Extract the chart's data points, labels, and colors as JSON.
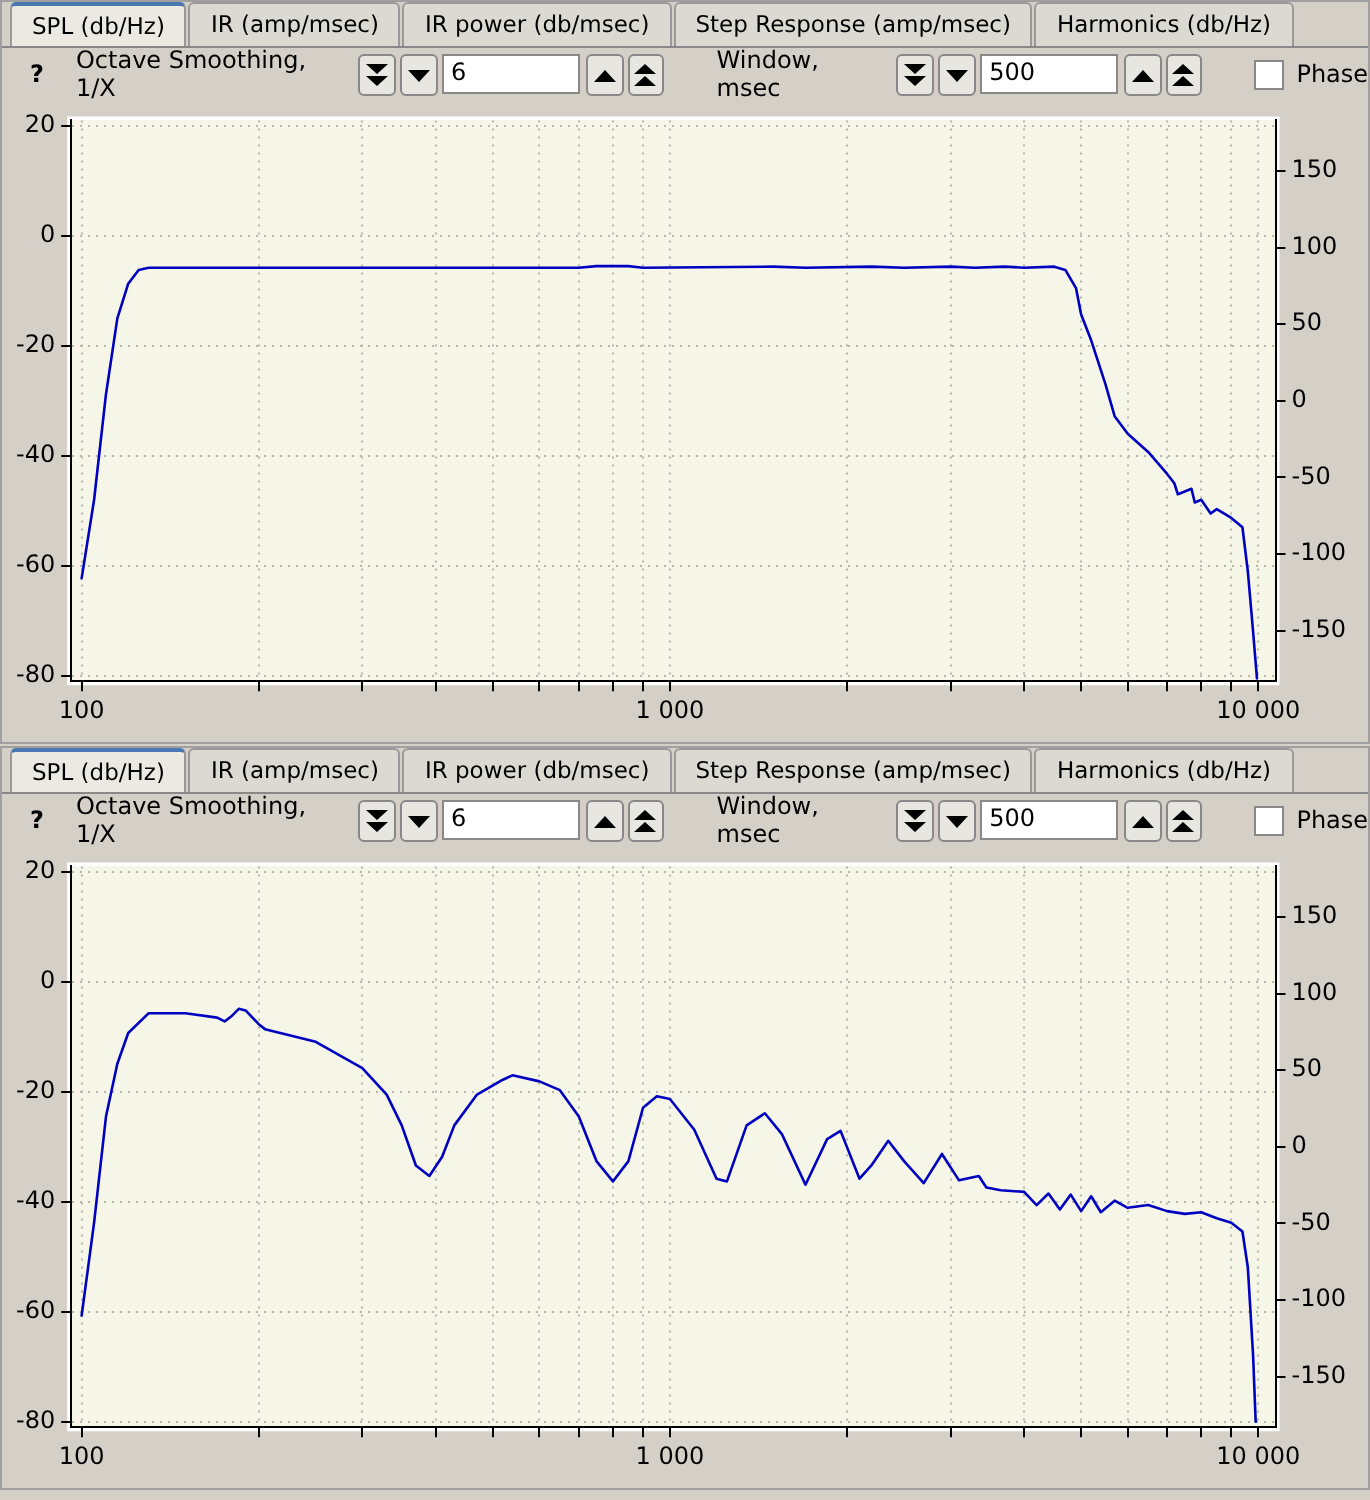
{
  "chart_data": [
    {
      "type": "line",
      "log": "x",
      "grid": true,
      "marker": "none",
      "line_style": "solid",
      "annotations": [
        "SPL (db/Hz)",
        "IR (amp/msec)",
        "IR power (db/msec)",
        "Step Response (amp/msec)",
        "Harmonics (db/Hz)",
        "?",
        "Octave Smoothing, 1/X",
        "6",
        "Window, msec",
        "500",
        "Phase"
      ],
      "xlim": [
        96,
        10700
      ],
      "ylim": [
        -81,
        21
      ],
      "y2lim": [
        -183,
        183
      ],
      "xticks": [
        100,
        {
          "value": 200,
          "label": null
        },
        {
          "value": 300,
          "label": null
        },
        {
          "value": 400,
          "label": null
        },
        {
          "value": 500,
          "label": null
        },
        {
          "value": 600,
          "label": null
        },
        {
          "value": 700,
          "label": null
        },
        {
          "value": 800,
          "label": null
        },
        {
          "value": 900,
          "label": null
        },
        {
          "value": 1000,
          "label": "1 000"
        },
        {
          "value": 2000,
          "label": null
        },
        {
          "value": 3000,
          "label": null
        },
        {
          "value": 4000,
          "label": null
        },
        {
          "value": 5000,
          "label": null
        },
        {
          "value": 6000,
          "label": null
        },
        {
          "value": 7000,
          "label": null
        },
        {
          "value": 8000,
          "label": null
        },
        {
          "value": 9000,
          "label": null
        },
        {
          "value": 10000,
          "label": "10 000"
        }
      ],
      "yticks": [
        -80,
        -60,
        -40,
        -20,
        0,
        20
      ],
      "y2ticks": [
        -150,
        -100,
        -50,
        0,
        50,
        100,
        150
      ],
      "series": [
        {
          "color": "#0000c0",
          "x": [
            100,
            105,
            110,
            115,
            120,
            125,
            130,
            300,
            700,
            750,
            850,
            900,
            1500,
            1700,
            2200,
            2500,
            3000,
            3300,
            3700,
            4000,
            4500,
            4700,
            4900,
            5000,
            5200,
            5500,
            5700,
            6000,
            6500,
            7000,
            7200,
            7300,
            7500,
            7700,
            7800,
            8000,
            8300,
            8500,
            9000,
            9400,
            9600,
            9800,
            9950
          ],
          "values": [
            -62.3,
            -48,
            -28.8,
            -15,
            -8.7,
            -6.2,
            -5.8,
            -5.8,
            -5.8,
            -5.5,
            -5.5,
            -5.8,
            -5.6,
            -5.8,
            -5.6,
            -5.8,
            -5.6,
            -5.8,
            -5.6,
            -5.8,
            -5.6,
            -6.2,
            -9.5,
            -14.3,
            -19,
            -27,
            -32.8,
            -36,
            -39.3,
            -43.3,
            -45,
            -47,
            -46.5,
            -46,
            -48.5,
            -48,
            -50.5,
            -49.7,
            -51.3,
            -53,
            -61,
            -72,
            -80.5
          ]
        }
      ]
    },
    {
      "type": "line",
      "log": "x",
      "grid": true,
      "marker": "none",
      "line_style": "solid",
      "annotations": [
        "SPL (db/Hz)",
        "IR (amp/msec)",
        "IR power (db/msec)",
        "Step Response (amp/msec)",
        "Harmonics (db/Hz)",
        "?",
        "Octave Smoothing, 1/X",
        "6",
        "Window, msec",
        "500",
        "Phase"
      ],
      "xlim": [
        96,
        10700
      ],
      "ylim": [
        -81,
        21
      ],
      "y2lim": [
        -183,
        183
      ],
      "xticks": [
        100,
        {
          "value": 200,
          "label": null
        },
        {
          "value": 300,
          "label": null
        },
        {
          "value": 400,
          "label": null
        },
        {
          "value": 500,
          "label": null
        },
        {
          "value": 600,
          "label": null
        },
        {
          "value": 700,
          "label": null
        },
        {
          "value": 800,
          "label": null
        },
        {
          "value": 900,
          "label": null
        },
        {
          "value": 1000,
          "label": "1 000"
        },
        {
          "value": 2000,
          "label": null
        },
        {
          "value": 3000,
          "label": null
        },
        {
          "value": 4000,
          "label": null
        },
        {
          "value": 5000,
          "label": null
        },
        {
          "value": 6000,
          "label": null
        },
        {
          "value": 7000,
          "label": null
        },
        {
          "value": 8000,
          "label": null
        },
        {
          "value": 9000,
          "label": null
        },
        {
          "value": 10000,
          "label": "10 000"
        }
      ],
      "yticks": [
        -80,
        -60,
        -40,
        -20,
        0,
        20
      ],
      "y2ticks": [
        -150,
        -100,
        -50,
        0,
        50,
        100,
        150
      ],
      "series": [
        {
          "color": "#0000c0",
          "x": [
            100,
            105,
            110,
            115,
            120,
            130,
            150,
            170,
            175,
            180,
            185,
            190,
            200,
            205,
            250,
            300,
            330,
            350,
            370,
            390,
            410,
            430,
            470,
            520,
            540,
            600,
            650,
            700,
            750,
            800,
            850,
            900,
            950,
            1000,
            1100,
            1200,
            1250,
            1350,
            1450,
            1550,
            1700,
            1850,
            1950,
            2100,
            2200,
            2350,
            2500,
            2700,
            2900,
            3100,
            3350,
            3450,
            3650,
            4000,
            4200,
            4400,
            4600,
            4800,
            5000,
            5200,
            5400,
            5700,
            6000,
            6500,
            7000,
            7500,
            8000,
            8500,
            9000,
            9400,
            9600,
            9800,
            9900
          ],
          "values": [
            -60.7,
            -43.8,
            -24.5,
            -14.9,
            -9.3,
            -5.7,
            -5.7,
            -6.5,
            -7.2,
            -6.2,
            -4.9,
            -5.2,
            -7.7,
            -8.6,
            -10.9,
            -15.7,
            -20.5,
            -26.1,
            -33.4,
            -35.3,
            -31.8,
            -26.1,
            -20.5,
            -17.8,
            -17,
            -18.1,
            -19.7,
            -24.5,
            -32.6,
            -36.3,
            -32.6,
            -22.9,
            -20.8,
            -21.3,
            -26.9,
            -35.8,
            -36.3,
            -26.1,
            -23.9,
            -27.7,
            -36.9,
            -28.6,
            -27.1,
            -35.8,
            -33.4,
            -28.9,
            -32.6,
            -36.6,
            -31.3,
            -36.1,
            -35.3,
            -37.4,
            -37.9,
            -38.2,
            -40.6,
            -38.5,
            -41.4,
            -38.7,
            -41.7,
            -39,
            -41.9,
            -39.8,
            -41.1,
            -40.6,
            -41.7,
            -42.2,
            -41.9,
            -43,
            -43.8,
            -45.4,
            -51.9,
            -67.9,
            -80
          ]
        }
      ]
    }
  ]
}
